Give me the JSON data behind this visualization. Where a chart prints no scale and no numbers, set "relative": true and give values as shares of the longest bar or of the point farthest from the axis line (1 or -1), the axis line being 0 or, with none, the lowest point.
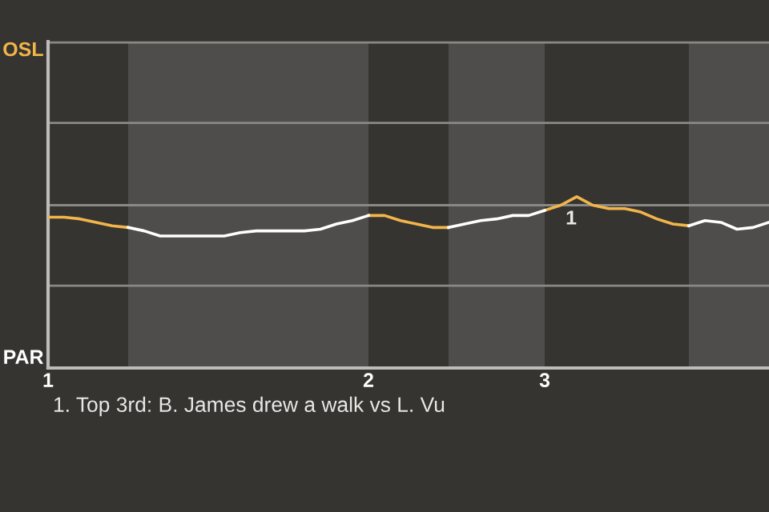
{
  "chart_data": {
    "type": "line",
    "relative": true,
    "categories": [
      "1",
      null,
      null,
      null,
      null,
      null,
      null,
      null,
      null,
      null,
      null,
      null,
      null,
      null,
      null,
      null,
      null,
      null,
      null,
      null,
      "2",
      null,
      null,
      null,
      null,
      null,
      null,
      null,
      null,
      null,
      null,
      "3",
      null,
      null,
      null,
      null,
      null,
      null,
      null,
      null,
      null,
      null,
      null,
      null,
      null,
      null
    ],
    "marker": "none",
    "ref_lines": [
      {
        "axis": "y",
        "value": 0.48,
        "color": "#8a8986"
      },
      {
        "axis": "y",
        "value": 0.95,
        "color": "#8a8986"
      },
      {
        "axis": "y",
        "value": 1.43,
        "color": "#8a8986"
      },
      {
        "axis": "y",
        "value": 1.9,
        "color": "#8a8986"
      }
    ],
    "line_style": "solid",
    "series": [
      {
        "color": "#f2b54a",
        "values": [
          0.88,
          0.88,
          0.87,
          0.85,
          0.83,
          0.82,
          null,
          null,
          null,
          null,
          null,
          null,
          null,
          null,
          null,
          null,
          null,
          null,
          null,
          null,
          0.89,
          0.89,
          0.86,
          0.84,
          0.82,
          0.82,
          null,
          null,
          null,
          null,
          null,
          0.92,
          0.95,
          1,
          0.95,
          0.93,
          0.93,
          0.91,
          0.87,
          0.84,
          0.83,
          null,
          null,
          null,
          null,
          null
        ]
      },
      {
        "color": "#ffffff",
        "values": [
          null,
          null,
          null,
          null,
          null,
          0.82,
          0.8,
          0.77,
          0.77,
          0.77,
          0.77,
          0.77,
          0.79,
          0.8,
          0.8,
          0.8,
          0.8,
          0.81,
          0.84,
          0.86,
          0.89,
          null,
          null,
          null,
          null,
          0.82,
          0.84,
          0.86,
          0.87,
          0.89,
          0.89,
          0.92,
          null,
          null,
          null,
          null,
          null,
          null,
          null,
          null,
          0.83,
          0.86,
          0.85,
          0.81,
          0.82,
          0.85
        ]
      }
    ],
    "annotations": [
      "OSL",
      "PAR",
      {
        "text": "1",
        "y": 1
      },
      "1. Top 3rd: B. James drew a walk vs L. Vu"
    ]
  }
}
